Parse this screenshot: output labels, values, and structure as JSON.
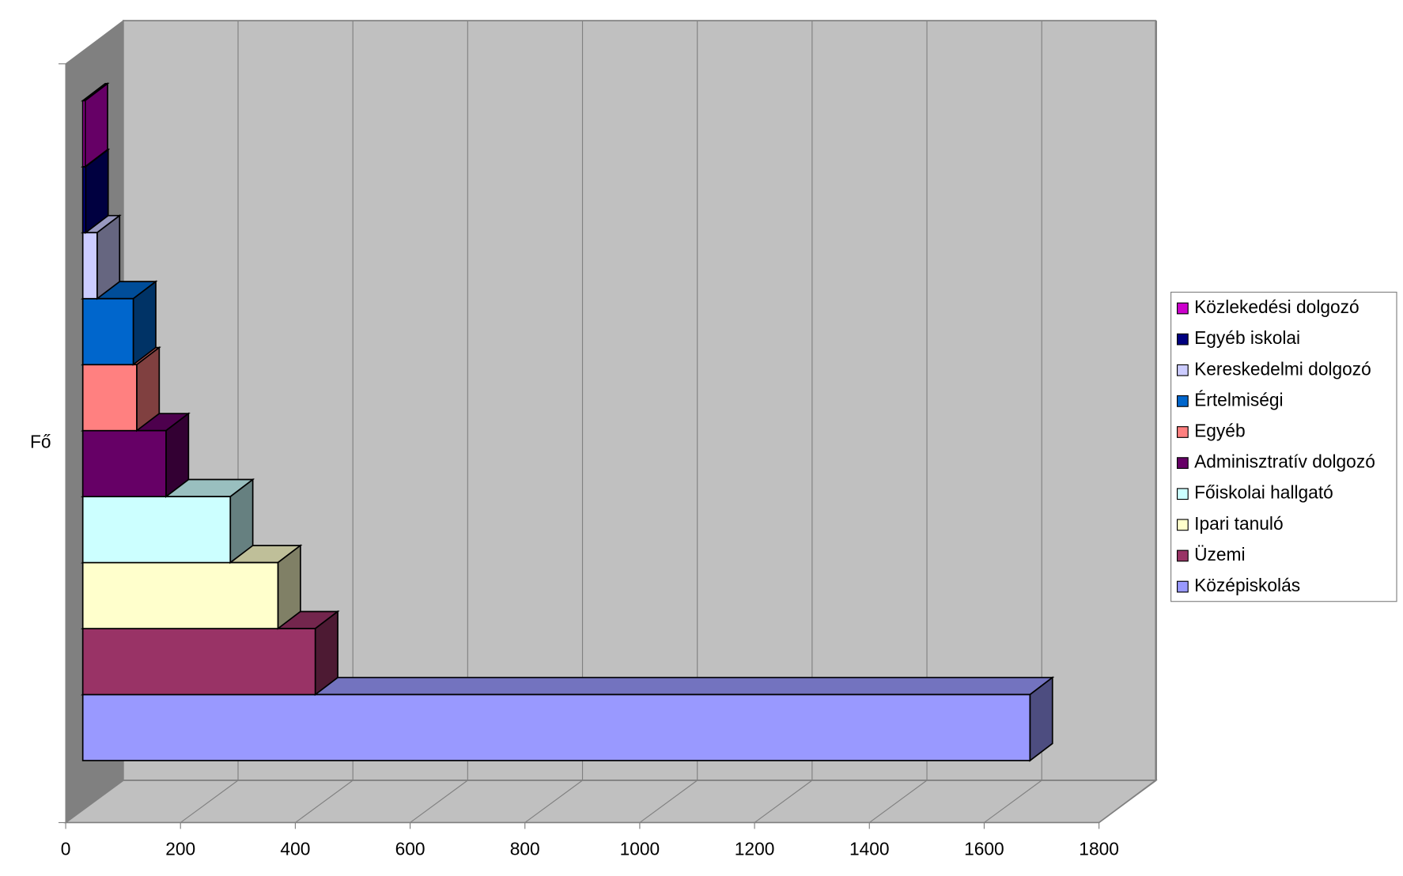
{
  "chart_data": {
    "type": "bar",
    "orientation": "horizontal",
    "three_d": true,
    "categories": [
      "Fő"
    ],
    "series": [
      {
        "name": "Közlekedési dolgozó",
        "color": "#cc00cc",
        "values": [
          4
        ]
      },
      {
        "name": "Egyéb iskolai",
        "color": "#000080",
        "values": [
          5
        ]
      },
      {
        "name": "Kereskedelmi dolgozó",
        "color": "#ccccff",
        "values": [
          25
        ]
      },
      {
        "name": "Értelmiségi",
        "color": "#0066cc",
        "values": [
          88
        ]
      },
      {
        "name": "Egyéb",
        "color": "#ff8080",
        "values": [
          94
        ]
      },
      {
        "name": "Adminisztratív dolgozó",
        "color": "#660066",
        "values": [
          145
        ]
      },
      {
        "name": "Főiskolai hallgató",
        "color": "#ccffff",
        "values": [
          257
        ]
      },
      {
        "name": "Ipari tanuló",
        "color": "#ffffcc",
        "values": [
          340
        ]
      },
      {
        "name": "Üzemi",
        "color": "#993366",
        "values": [
          405
        ]
      },
      {
        "name": "Középiskolás",
        "color": "#9999ff",
        "values": [
          1650
        ]
      }
    ],
    "xlim": [
      0,
      1800
    ],
    "xticks": [
      0,
      200,
      400,
      600,
      800,
      1000,
      1200,
      1400,
      1600,
      1800
    ],
    "grid": true,
    "legend": "right"
  }
}
